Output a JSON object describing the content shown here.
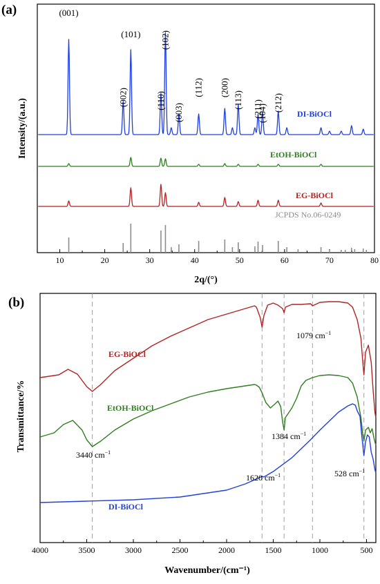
{
  "figure_labels": {
    "a": "(a)",
    "b": "(b)"
  },
  "colors": {
    "di": "#1f3fe0",
    "etoh": "#2e7d1f",
    "eg": "#b22222",
    "ref": "#8c8c8c",
    "dash": "#a0a0a0"
  },
  "chart_data": [
    {
      "panel": "(a)",
      "type": "line",
      "xlabel": "2q/(°)",
      "ylabel": "Intensity/(a.u.)",
      "xlim": [
        5,
        80
      ],
      "xticks": [
        10,
        20,
        30,
        40,
        50,
        60,
        70,
        80
      ],
      "y_ticks_shown": false,
      "grid": false,
      "series": [
        {
          "name": "DI-BiOCl",
          "color": "#1f3fe0",
          "peaks": [
            [
              12.0,
              138
            ],
            [
              24.1,
              48
            ],
            [
              25.8,
              123
            ],
            [
              32.5,
              60
            ],
            [
              33.5,
              148
            ],
            [
              34.8,
              10
            ],
            [
              36.5,
              30
            ],
            [
              40.9,
              30
            ],
            [
              46.7,
              38
            ],
            [
              48.4,
              10
            ],
            [
              49.7,
              44
            ],
            [
              53.4,
              10
            ],
            [
              54.1,
              30
            ],
            [
              55.1,
              33
            ],
            [
              58.6,
              34
            ],
            [
              60.5,
              10
            ],
            [
              68.1,
              10
            ],
            [
              70.0,
              5
            ],
            [
              72.6,
              5
            ],
            [
              74.9,
              13
            ],
            [
              77.5,
              8
            ]
          ]
        },
        {
          "name": "EtOH-BiOCl",
          "color": "#2e7d1f",
          "peaks": [
            [
              12.0,
              4
            ],
            [
              25.8,
              13
            ],
            [
              32.5,
              12
            ],
            [
              33.5,
              11
            ],
            [
              40.9,
              3
            ],
            [
              46.7,
              4
            ],
            [
              49.7,
              3
            ],
            [
              54.1,
              3
            ],
            [
              58.6,
              3
            ],
            [
              68.1,
              3
            ]
          ]
        },
        {
          "name": "EG-BiOCl",
          "color": "#b22222",
          "peaks": [
            [
              12.0,
              8
            ],
            [
              25.8,
              27
            ],
            [
              32.5,
              32
            ],
            [
              33.5,
              20
            ],
            [
              40.9,
              6
            ],
            [
              46.7,
              13
            ],
            [
              49.7,
              7
            ],
            [
              54.1,
              9
            ],
            [
              58.6,
              9
            ],
            [
              68.1,
              5
            ]
          ]
        },
        {
          "name": "JCPDS No.06-0249",
          "color": "#8c8c8c",
          "type": "stick",
          "peaks": [
            [
              12.0,
              22
            ],
            [
              24.1,
              14
            ],
            [
              25.8,
              42
            ],
            [
              32.5,
              32
            ],
            [
              33.5,
              40
            ],
            [
              34.8,
              8
            ],
            [
              36.5,
              12
            ],
            [
              40.9,
              17
            ],
            [
              46.7,
              19
            ],
            [
              48.4,
              8
            ],
            [
              49.7,
              15
            ],
            [
              53.4,
              9
            ],
            [
              54.1,
              16
            ],
            [
              55.1,
              11
            ],
            [
              58.6,
              17
            ],
            [
              60.5,
              8
            ],
            [
              63.0,
              5
            ],
            [
              68.1,
              8
            ],
            [
              70.0,
              4
            ],
            [
              72.6,
              4
            ],
            [
              73.5,
              4
            ],
            [
              74.9,
              7
            ],
            [
              75.6,
              5
            ],
            [
              77.5,
              6
            ],
            [
              78.2,
              4
            ]
          ]
        }
      ],
      "annotations": [
        {
          "text": "(001)",
          "x": 12.0,
          "rotate": false
        },
        {
          "text": "(002)",
          "x": 24.1,
          "rotate": true
        },
        {
          "text": "(101)",
          "x": 25.8,
          "rotate": false
        },
        {
          "text": "(110)",
          "x": 32.5,
          "rotate": true
        },
        {
          "text": "(102)",
          "x": 33.5,
          "rotate": true
        },
        {
          "text": "(003)",
          "x": 36.5,
          "rotate": true
        },
        {
          "text": "(112)",
          "x": 40.9,
          "rotate": true
        },
        {
          "text": "(200)",
          "x": 46.7,
          "rotate": true
        },
        {
          "text": "(113)",
          "x": 49.7,
          "rotate": true
        },
        {
          "text": "(211)",
          "x": 54.1,
          "rotate": true
        },
        {
          "text": "(104)",
          "x": 55.1,
          "rotate": true
        },
        {
          "text": "(212)",
          "x": 58.6,
          "rotate": true
        }
      ]
    },
    {
      "panel": "(b)",
      "type": "line",
      "xlabel": "Wavenumber/(cm⁻¹)",
      "ylabel": "Transmittance/%",
      "xlim": [
        4000,
        400
      ],
      "xticks": [
        4000,
        3500,
        3000,
        2500,
        2000,
        1500,
        1000,
        500
      ],
      "y_ticks_shown": false,
      "grid": false,
      "reference_lines": [
        3440,
        1620,
        1384,
        1079,
        528
      ],
      "series": [
        {
          "name": "EG-BiOCl",
          "color": "#b22222",
          "x": [
            4000,
            3800,
            3700,
            3600,
            3500,
            3440,
            3350,
            3200,
            3000,
            2800,
            2600,
            2400,
            2200,
            2000,
            1800,
            1700,
            1680,
            1640,
            1620,
            1600,
            1560,
            1500,
            1450,
            1420,
            1400,
            1384,
            1370,
            1300,
            1200,
            1100,
            1079,
            1000,
            900,
            800,
            700,
            650,
            600,
            560,
            540,
            528,
            510,
            480,
            450,
            430,
            410,
            400
          ],
          "y": [
            58,
            62,
            70,
            63,
            45,
            38,
            48,
            68,
            86,
            104,
            118,
            130,
            142,
            150,
            158,
            162,
            160,
            145,
            131,
            148,
            163,
            166,
            163,
            160,
            158,
            152,
            160,
            164,
            164,
            165,
            162,
            167,
            168,
            168,
            166,
            160,
            142,
            115,
            80,
            62,
            95,
            105,
            80,
            40,
            8,
            0
          ]
        },
        {
          "name": "EtOH-BiOCl",
          "color": "#2e7d1f",
          "x": [
            4000,
            3850,
            3750,
            3650,
            3550,
            3500,
            3440,
            3350,
            3200,
            3000,
            2800,
            2600,
            2400,
            2200,
            2000,
            1800,
            1700,
            1680,
            1650,
            1620,
            1580,
            1530,
            1480,
            1450,
            1420,
            1400,
            1384,
            1370,
            1340,
            1300,
            1250,
            1200,
            1150,
            1079,
            1000,
            900,
            800,
            700,
            650,
            600,
            560,
            540,
            528,
            510,
            480,
            460,
            440,
            420,
            400
          ],
          "y": [
            -28,
            -22,
            -10,
            -4,
            -18,
            -32,
            -42,
            -34,
            -18,
            -2,
            10,
            20,
            30,
            37,
            42,
            46,
            48,
            47,
            44,
            36,
            22,
            14,
            20,
            24,
            16,
            -6,
            -18,
            0,
            6,
            14,
            28,
            46,
            54,
            58,
            61,
            62,
            61,
            58,
            50,
            30,
            0,
            -24,
            -34,
            -18,
            -14,
            -22,
            -16,
            -30,
            -40
          ]
        },
        {
          "name": "DI-BiOCl",
          "color": "#1f3fe0",
          "x": [
            4000,
            3500,
            3000,
            2500,
            2000,
            1800,
            1700,
            1650,
            1620,
            1600,
            1500,
            1400,
            1300,
            1200,
            1100,
            1000,
            900,
            800,
            700,
            650,
            620,
            600,
            570,
            550,
            528,
            510,
            490,
            470,
            450,
            430,
            410,
            400
          ],
          "y": [
            -123,
            -121,
            -119,
            -115,
            -105,
            -96,
            -90,
            -87,
            -85,
            -86,
            -78,
            -68,
            -58,
            -45,
            -32,
            -18,
            -5,
            8,
            17,
            20,
            18,
            10,
            2,
            -28,
            -55,
            -35,
            -25,
            -28,
            -50,
            -60,
            -75,
            -80
          ]
        }
      ],
      "annotations": [
        {
          "text": "3440 cm",
          "sup": "−1"
        },
        {
          "text": "1620 cm",
          "sup": "−1"
        },
        {
          "text": "1384 cm",
          "sup": "−1"
        },
        {
          "text": "1079 cm",
          "sup": "−1"
        },
        {
          "text": "528 cm",
          "sup": "−1"
        }
      ]
    }
  ]
}
